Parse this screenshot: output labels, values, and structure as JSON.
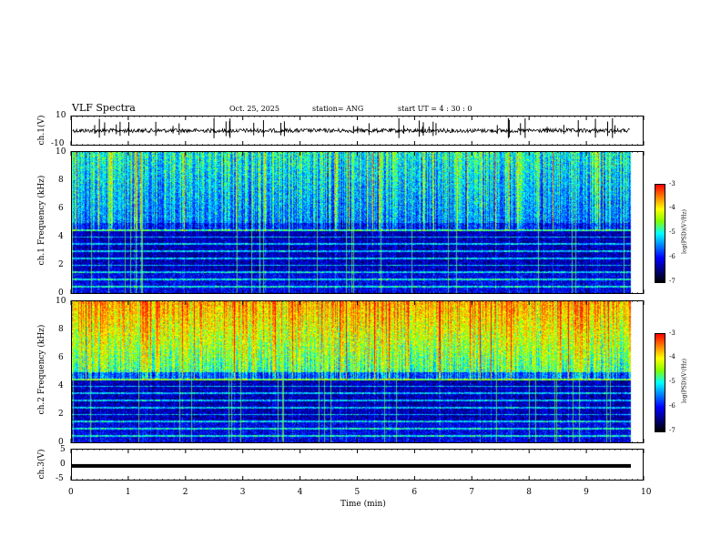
{
  "header": {
    "title": "VLF Spectra",
    "date": "Oct. 25, 2025",
    "station": "station= ANG",
    "start": "start  UT =   4 : 30 : 0"
  },
  "chart_data": [
    {
      "type": "line",
      "name": "ch1-waveform",
      "ylabel": "ch.1(V)",
      "ylim": [
        -10,
        10
      ],
      "yticks": [
        "10",
        "-10"
      ],
      "xlim": [
        0,
        10
      ],
      "baseline": 0
    },
    {
      "type": "heatmap",
      "name": "ch1-spectrogram",
      "ylabel": "ch.1  Frequency (kHz)",
      "ylim": [
        0,
        10
      ],
      "yticks": [
        "0",
        "2",
        "4",
        "6",
        "8",
        "10"
      ],
      "xlim": [
        0,
        10
      ],
      "colorbar": {
        "label": "log(PSD)(V²/Hz)",
        "range": [
          -7,
          -3
        ],
        "ticks": [
          "-3",
          "-4",
          "-5",
          "-6",
          "-7"
        ]
      }
    },
    {
      "type": "heatmap",
      "name": "ch2-spectrogram",
      "ylabel": "ch.2  Frequency (kHz)",
      "ylim": [
        0,
        10
      ],
      "yticks": [
        "0",
        "2",
        "4",
        "6",
        "8",
        "10"
      ],
      "xlim": [
        0,
        10
      ],
      "colorbar": {
        "label": "log(PSD)(V²/Hz)",
        "range": [
          -7,
          -3
        ],
        "ticks": [
          "-3",
          "-4",
          "-5",
          "-6",
          "-7"
        ]
      }
    },
    {
      "type": "line",
      "name": "ch3-trace",
      "ylabel": "ch.3(V)",
      "ylim": [
        -5,
        5
      ],
      "yticks": [
        "5",
        "0",
        "-5"
      ],
      "xlim": [
        0,
        10
      ],
      "value": -0.4
    }
  ],
  "xaxis": {
    "label": "Time  (min)",
    "ticks": [
      "0",
      "1",
      "2",
      "3",
      "4",
      "5",
      "6",
      "7",
      "8",
      "9",
      "10"
    ]
  },
  "colors": {
    "black": "#000000",
    "white": "#ffffff"
  }
}
